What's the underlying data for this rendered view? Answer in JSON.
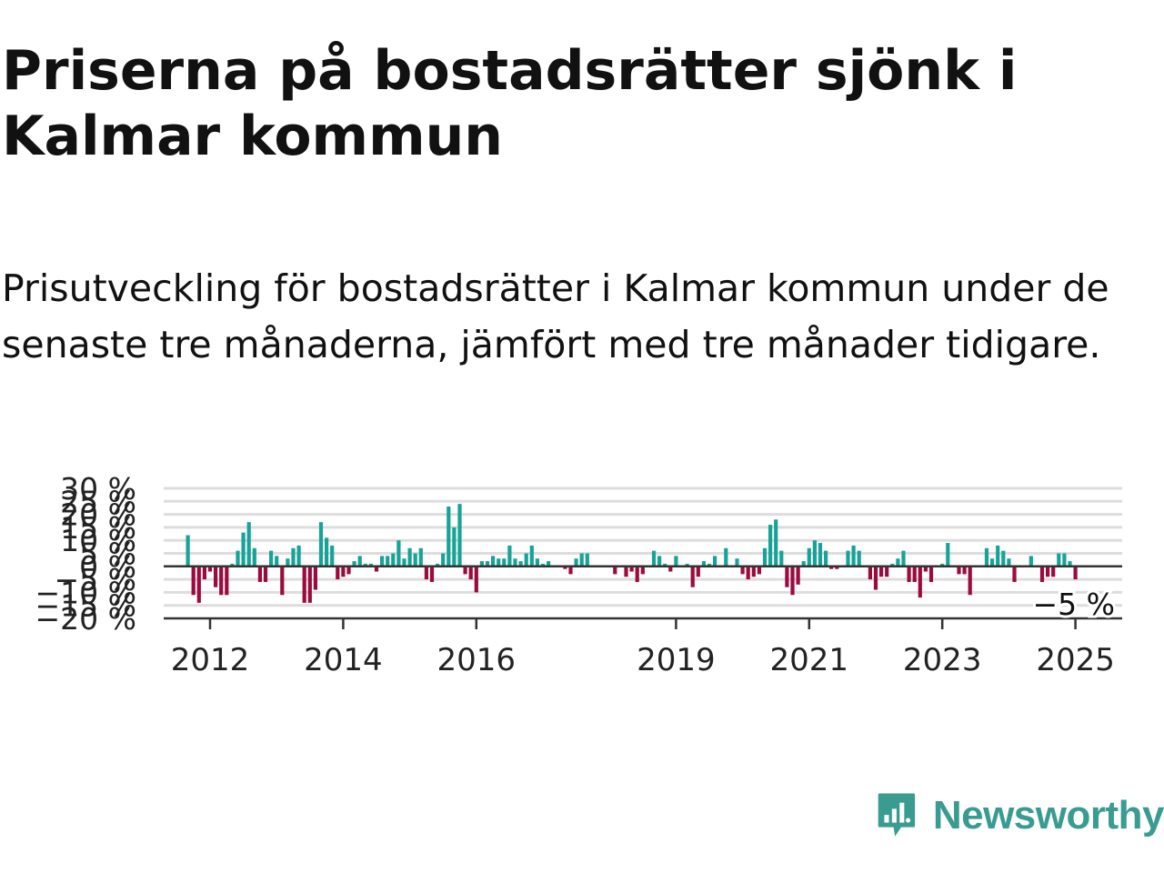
{
  "title": "Priserna på bostadsrätter sjönk i Kalmar kommun",
  "subtitle": "Prisutveckling för bostadsrätter i Kalmar kommun under de senaste tre månaderna, jämfört med tre månader tidigare.",
  "logo": {
    "text": "Newsworthy",
    "icon": "bar-chart-speech-bubble-icon"
  },
  "colors": {
    "positive": "#17a397",
    "negative": "#9b0b3d",
    "zero_line": "#333333",
    "grid": "#dddddd",
    "logo": "#3a9c91"
  },
  "chart_data": {
    "type": "bar",
    "title": "",
    "xlabel": "",
    "ylabel": "",
    "ylim": [
      -20,
      30
    ],
    "y_ticks": [
      "30 %",
      "25 %",
      "20 %",
      "15 %",
      "10 %",
      "5 %",
      "0 %",
      "−5 %",
      "−10 %",
      "−15 %",
      "−20 %"
    ],
    "x_ticks": [
      "2012",
      "2014",
      "2016",
      "2019",
      "2021",
      "2023",
      "2025"
    ],
    "end_label": "−5 %",
    "grid": true,
    "start_month": "2011-09",
    "values": [
      12,
      -11,
      -14,
      -5,
      -2,
      -8,
      -11,
      -11,
      1,
      6,
      13,
      17,
      7,
      -6,
      -6,
      6,
      4,
      -11,
      3,
      7,
      8,
      -14,
      -14,
      -9,
      17,
      11,
      8,
      -5,
      -4,
      -3,
      2,
      4,
      1,
      1,
      -2,
      4,
      4,
      5,
      10,
      3,
      7,
      5,
      7,
      -5,
      -6,
      1,
      5,
      23,
      15,
      24,
      -3,
      -5,
      -10,
      2,
      2,
      4,
      3,
      3,
      8,
      3,
      2,
      5,
      8,
      3,
      1,
      2,
      0,
      0,
      -1,
      -3,
      3,
      5,
      5,
      0,
      0,
      0,
      0,
      -3,
      0,
      -4,
      -2,
      -6,
      -3,
      0,
      6,
      4,
      1,
      -2,
      4,
      0,
      1,
      -8,
      -4,
      2,
      1,
      4,
      0,
      7,
      0,
      3,
      -3,
      -5,
      -4,
      -3,
      7,
      16,
      18,
      6,
      -8,
      -11,
      -7,
      2,
      7,
      10,
      9,
      6,
      -1,
      -1,
      0,
      6,
      8,
      6,
      0,
      -5,
      -9,
      -4,
      -4,
      1,
      3,
      6,
      -6,
      -6,
      -12,
      -2,
      -6,
      0,
      1,
      9,
      0,
      -3,
      -3,
      -11,
      0,
      0,
      7,
      3,
      8,
      6,
      3,
      -6,
      0,
      0,
      4,
      0,
      -6,
      -4,
      -4,
      5,
      5,
      2,
      -5
    ]
  }
}
